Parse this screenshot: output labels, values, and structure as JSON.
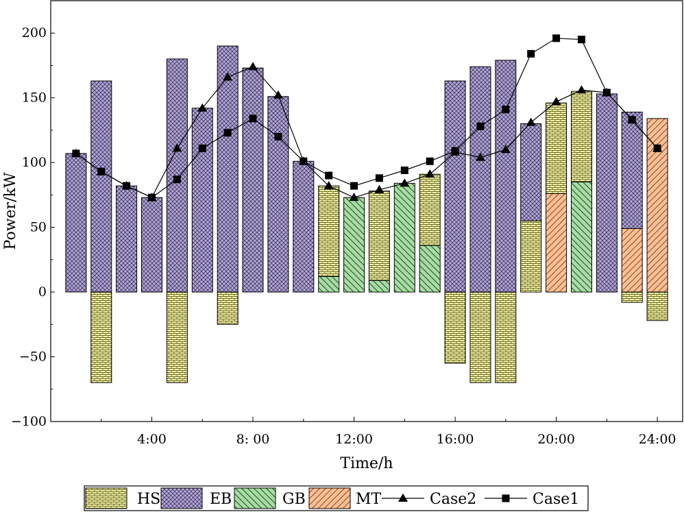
{
  "chart_data": {
    "type": "bar",
    "subtype": "stacked bar with line overlays",
    "xlabel": "Time/h",
    "ylabel": "Power/kW",
    "xlim": [
      0,
      25
    ],
    "ylim": [
      -100,
      225
    ],
    "x_ticks": [
      4,
      8,
      12,
      16,
      20,
      24
    ],
    "x_tick_labels": [
      "4:00",
      "8: 00",
      "12:00",
      "16:00",
      "20:00",
      "24:00"
    ],
    "y_ticks": [
      -100,
      -50,
      0,
      50,
      100,
      150,
      200
    ],
    "y_tick_labels": [
      "−100",
      "−50",
      "0",
      "50",
      "100",
      "150",
      "200"
    ],
    "hours": [
      1,
      2,
      3,
      4,
      5,
      6,
      7,
      8,
      9,
      10,
      11,
      12,
      13,
      14,
      15,
      16,
      17,
      18,
      19,
      20,
      21,
      22,
      23,
      24
    ],
    "series": [
      {
        "name": "MT",
        "color": "#fdbf94",
        "pattern": "mt",
        "values": [
          0,
          0,
          0,
          0,
          0,
          0,
          0,
          0,
          0,
          0,
          0,
          0,
          0,
          0,
          0,
          0,
          0,
          0,
          0,
          76,
          0,
          0,
          49,
          134
        ]
      },
      {
        "name": "GB",
        "color": "#a8dca4",
        "pattern": "gb",
        "values": [
          0,
          0,
          0,
          0,
          0,
          0,
          0,
          0,
          0,
          0,
          12,
          73,
          9,
          84,
          36,
          0,
          0,
          0,
          0,
          0,
          85,
          0,
          0,
          0
        ]
      },
      {
        "name": "HS",
        "color": "#f4f2a6",
        "pattern": "hs",
        "values": [
          0,
          -70,
          0,
          0,
          -70,
          0,
          -25,
          0,
          0,
          0,
          70,
          0,
          69,
          0,
          55,
          -55,
          -70,
          -70,
          55,
          70,
          70,
          0,
          -8,
          -22
        ]
      },
      {
        "name": "EB",
        "color": "#b5a8d4",
        "pattern": "eb",
        "values": [
          107,
          163,
          82,
          73,
          180,
          142,
          190,
          173,
          151,
          101,
          0,
          0,
          0,
          0,
          0,
          163,
          174,
          179,
          75,
          0,
          0,
          153,
          90,
          0
        ]
      }
    ],
    "lines": [
      {
        "name": "Case2",
        "marker": "triangle",
        "values": [
          107,
          93,
          82,
          73,
          111,
          142,
          166,
          174,
          152,
          101,
          82,
          73,
          79,
          84,
          91,
          108,
          104,
          110,
          131,
          147,
          156,
          154,
          133,
          111
        ]
      },
      {
        "name": "Case1",
        "marker": "square",
        "values": [
          107,
          93,
          82,
          73,
          87,
          111,
          123,
          134,
          120,
          101,
          90,
          82,
          88,
          94,
          101,
          109,
          128,
          141,
          184,
          196,
          195,
          154,
          133,
          111
        ]
      }
    ],
    "legend": {
      "position": "bottom",
      "items": [
        {
          "label": "HS",
          "kind": "patch",
          "ref": "hs"
        },
        {
          "label": "EB",
          "kind": "patch",
          "ref": "eb"
        },
        {
          "label": "GB",
          "kind": "patch",
          "ref": "gb"
        },
        {
          "label": "MT",
          "kind": "patch",
          "ref": "mt"
        },
        {
          "label": "Case2",
          "kind": "line",
          "ref": "triangle"
        },
        {
          "label": "Case1",
          "kind": "line",
          "ref": "square"
        }
      ]
    }
  }
}
